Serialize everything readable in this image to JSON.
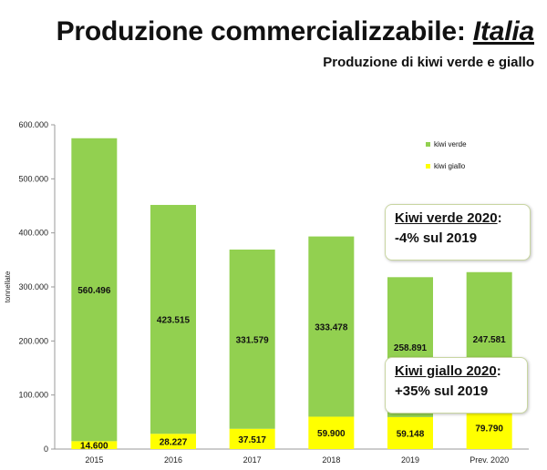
{
  "header": {
    "title_main": "Produzione commercializzabile: ",
    "title_country": "Italia",
    "subtitle": "Produzione di kiwi verde e giallo"
  },
  "callouts": {
    "verde": {
      "head": "Kiwi verde 2020",
      "colon": ":",
      "body": "-4% sul 2019"
    },
    "giallo": {
      "head": "Kiwi giallo 2020",
      "colon": ":",
      "body": "+35% sul 2019"
    }
  },
  "colors": {
    "kiwi_verde": "#92d050",
    "kiwi_giallo": "#ffff00",
    "axis": "#999999"
  },
  "chart_data": {
    "type": "bar",
    "stacked": true,
    "categories": [
      "2015",
      "2016",
      "2017",
      "2018",
      "2019",
      "Prev. 2020"
    ],
    "series": [
      {
        "name": "kiwi giallo",
        "color": "#ffff00",
        "values": [
          14600,
          28227,
          37517,
          59900,
          59148,
          79790
        ]
      },
      {
        "name": "kiwi verde",
        "color": "#92d050",
        "values": [
          560496,
          423515,
          331579,
          333478,
          258891,
          247581
        ]
      }
    ],
    "value_labels": {
      "kiwi giallo": [
        "14.600",
        "28.227",
        "37.517",
        "59.900",
        "59.148",
        "79.790"
      ],
      "kiwi verde": [
        "560.496",
        "423.515",
        "331.579",
        "333.478",
        "258.891",
        "247.581"
      ]
    },
    "legend_order": [
      "kiwi verde",
      "kiwi giallo"
    ],
    "legend_position": "top-right",
    "ylabel": "tonnellate",
    "ylim": [
      0,
      600000
    ],
    "yticks": [
      0,
      100000,
      200000,
      300000,
      400000,
      500000,
      600000
    ],
    "ytick_labels": [
      "0",
      "100.000",
      "200.000",
      "300.000",
      "400.000",
      "500.000",
      "600.000"
    ],
    "grid": false
  }
}
